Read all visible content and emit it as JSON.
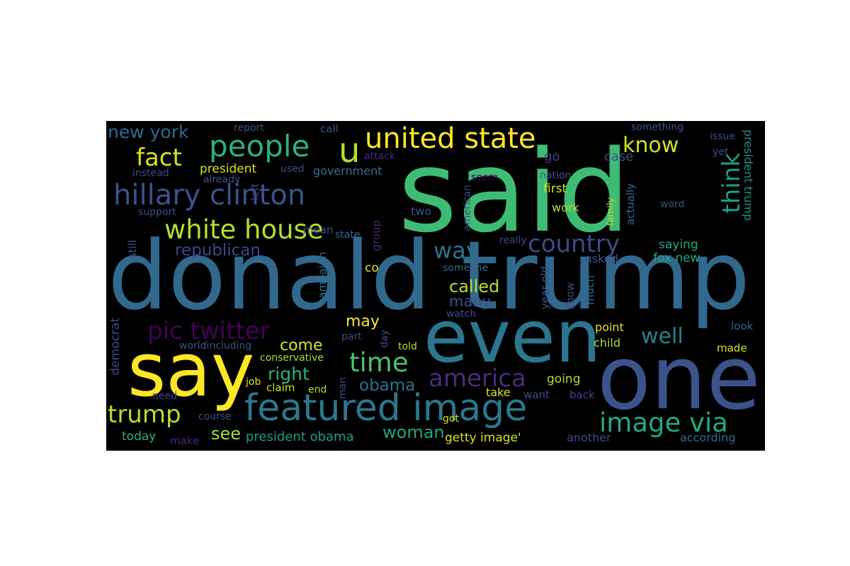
{
  "words": [
    {
      "text": "said",
      "color": "#3fbc73"
    },
    {
      "text": "donald trump",
      "color": "#31688e"
    },
    {
      "text": "even",
      "color": "#2b758e"
    },
    {
      "text": "one",
      "color": "#3b528b"
    },
    {
      "text": "say",
      "color": "#fde725"
    },
    {
      "text": "featured image",
      "color": "#2a788e"
    },
    {
      "text": "united state",
      "color": "#fde725"
    },
    {
      "text": "hillary clinton",
      "color": "#3b528b"
    },
    {
      "text": "people",
      "color": "#2ab07f"
    },
    {
      "text": "white house",
      "color": "#b5de2b"
    },
    {
      "text": "u",
      "color": "#b5de2b"
    },
    {
      "text": "fact",
      "color": "#d8e219"
    },
    {
      "text": "pic twitter",
      "color": "#440154"
    },
    {
      "text": "image via",
      "color": "#22a884"
    },
    {
      "text": "trump",
      "color": "#b5de2b"
    },
    {
      "text": "time",
      "color": "#4ac16d"
    },
    {
      "text": "country",
      "color": "#3e4a89"
    },
    {
      "text": "america",
      "color": "#472d7b"
    },
    {
      "text": "think",
      "color": "#1f9e89"
    },
    {
      "text": "way",
      "color": "#2c728e"
    },
    {
      "text": "republican",
      "color": "#414487"
    },
    {
      "text": "know",
      "color": "#d2e21b"
    },
    {
      "text": "well",
      "color": "#26828e"
    },
    {
      "text": "new york",
      "color": "#31688e"
    },
    {
      "text": "right",
      "color": "#2ab07f"
    },
    {
      "text": "obama",
      "color": "#2c728e"
    },
    {
      "text": "woman",
      "color": "#20a486"
    },
    {
      "text": "called",
      "color": "#b5de2b"
    },
    {
      "text": "may",
      "color": "#fde725"
    },
    {
      "text": "come",
      "color": "#d8e219"
    },
    {
      "text": "many",
      "color": "#3b528b"
    },
    {
      "text": "president",
      "color": "#d8e219"
    },
    {
      "text": "see",
      "color": "#a8db34"
    },
    {
      "text": "president obama",
      "color": "#1f9e89"
    },
    {
      "text": "getty image'",
      "color": "#d8e219"
    },
    {
      "text": "government",
      "color": "#2c728e"
    },
    {
      "text": "going",
      "color": "#b5de2b"
    },
    {
      "text": "first",
      "color": "#d2e21b"
    },
    {
      "text": "work",
      "color": "#b5de2b"
    },
    {
      "text": "go",
      "color": "#433e85"
    },
    {
      "text": "case",
      "color": "#3b528b"
    },
    {
      "text": "point",
      "color": "#dde318"
    },
    {
      "text": "child",
      "color": "#b5de2b"
    },
    {
      "text": "saying",
      "color": "#20a486"
    },
    {
      "text": "fox new",
      "color": "#22a884"
    },
    {
      "text": "president trump",
      "color": "#21918c"
    },
    {
      "text": "actually",
      "color": "#31688e"
    },
    {
      "text": "asked",
      "color": "#3b528b"
    },
    {
      "text": "year old",
      "color": "#3b528b"
    },
    {
      "text": "show",
      "color": "#3e4a89"
    },
    {
      "text": "much",
      "color": "#31688e"
    },
    {
      "text": "take",
      "color": "#d8e219"
    },
    {
      "text": "back",
      "color": "#414487"
    },
    {
      "text": "want",
      "color": "#3e4a89"
    },
    {
      "text": "made",
      "color": "#d8e219"
    },
    {
      "text": "look",
      "color": "#31688e"
    },
    {
      "text": "according",
      "color": "#31688e"
    },
    {
      "text": "another",
      "color": "#3e4a89"
    },
    {
      "text": "today",
      "color": "#2ab07f"
    },
    {
      "text": "make",
      "color": "#482878"
    },
    {
      "text": "mean",
      "color": "#3b528b"
    },
    {
      "text": "two",
      "color": "#3b528b"
    },
    {
      "text": "democrat",
      "color": "#3e4a89"
    },
    {
      "text": "campaign",
      "color": "#2c728e"
    },
    {
      "text": "group",
      "color": "#482878"
    },
    {
      "text": "left",
      "color": "#414487"
    },
    {
      "text": "still",
      "color": "#3b528b"
    },
    {
      "text": "co",
      "color": "#dde318"
    },
    {
      "text": "american",
      "color": "#3e4a89"
    },
    {
      "text": "job",
      "color": "#d8e219"
    },
    {
      "text": "claim",
      "color": "#d2e21b"
    },
    {
      "text": "end",
      "color": "#b5de2b"
    },
    {
      "text": "man",
      "color": "#3e4a89"
    },
    {
      "text": "told",
      "color": "#b5de2b"
    },
    {
      "text": "day",
      "color": "#3b528b"
    },
    {
      "text": "part",
      "color": "#3e4a89"
    },
    {
      "text": "conservative",
      "color": "#a8db34"
    },
    {
      "text": "worldincluding",
      "color": "#3b528b"
    },
    {
      "text": "need",
      "color": "#414487"
    },
    {
      "text": "course",
      "color": "#3b528b"
    },
    {
      "text": "got",
      "color": "#d8e219"
    },
    {
      "text": "watch",
      "color": "#3e4a89"
    },
    {
      "text": "someone",
      "color": "#31688e"
    },
    {
      "text": "really",
      "color": "#3e4a89"
    },
    {
      "text": "seem",
      "color": "#440154"
    },
    {
      "text": "nation",
      "color": "#3b528b"
    },
    {
      "text": "family",
      "color": "#b5de2b"
    },
    {
      "text": "word",
      "color": "#3b528b"
    },
    {
      "text": "yet",
      "color": "#3b528b"
    },
    {
      "text": "issue",
      "color": "#3e4a89"
    },
    {
      "text": "something",
      "color": "#3b528b"
    },
    {
      "text": "report",
      "color": "#3b528b"
    },
    {
      "text": "call",
      "color": "#3b528b"
    },
    {
      "text": "attack",
      "color": "#482878"
    },
    {
      "text": "instead",
      "color": "#3e4a89"
    },
    {
      "text": "used",
      "color": "#3e4a89"
    },
    {
      "text": "already",
      "color": "#3b528b"
    },
    {
      "text": "support",
      "color": "#3e4a89"
    },
    {
      "text": "state",
      "color": "#31688e"
    }
  ]
}
